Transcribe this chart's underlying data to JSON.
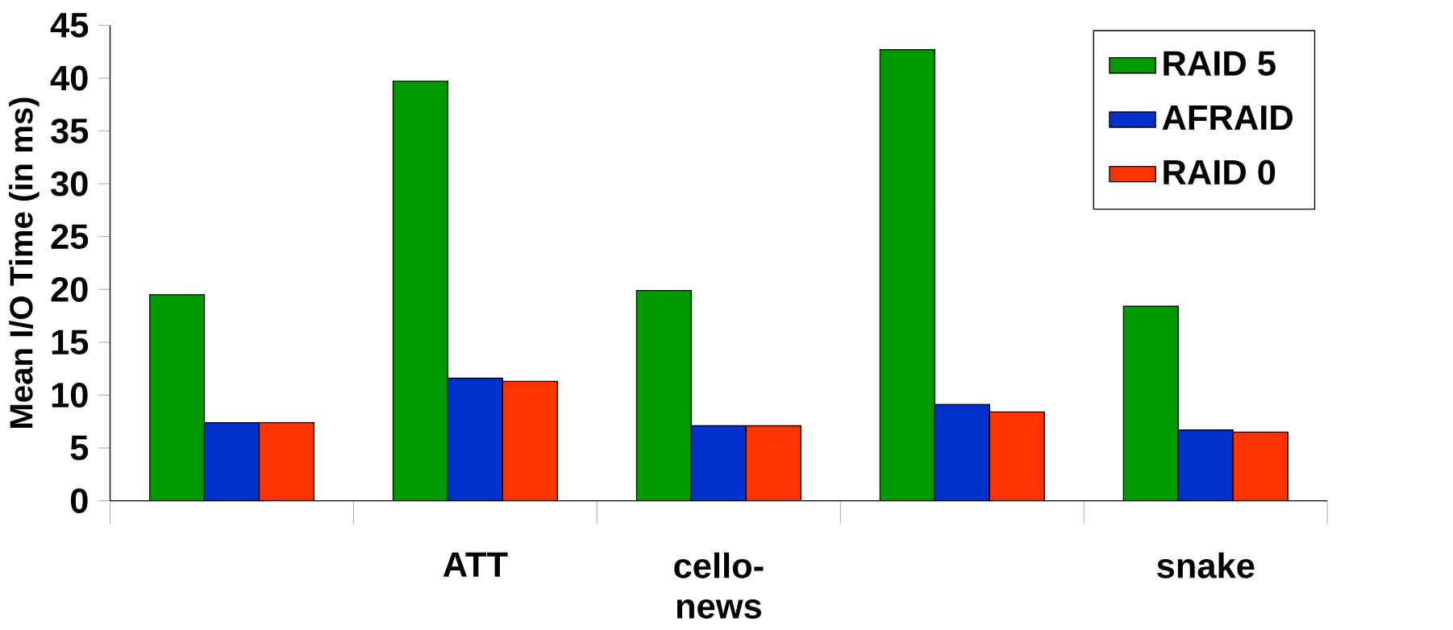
{
  "chart_data": {
    "type": "bar",
    "ylabel": "Mean I/O Time (in ms)",
    "categories": [
      null,
      "ATT",
      "cello-news",
      null,
      "snake"
    ],
    "series": [
      {
        "name": "RAID 5",
        "color": "#009900",
        "values": [
          19.5,
          39.7,
          19.9,
          42.7,
          18.4
        ]
      },
      {
        "name": "AFRAID",
        "color": "#0033cc",
        "values": [
          7.4,
          11.6,
          7.1,
          9.1,
          6.7
        ]
      },
      {
        "name": "RAID 0",
        "color": "#ff3300",
        "values": [
          7.4,
          11.3,
          7.1,
          8.4,
          6.5
        ]
      }
    ],
    "ylim": [
      0,
      45
    ],
    "yticks": [
      0,
      5,
      10,
      15,
      20,
      25,
      30,
      35,
      40,
      45
    ],
    "grid": false,
    "legend": "top right"
  }
}
